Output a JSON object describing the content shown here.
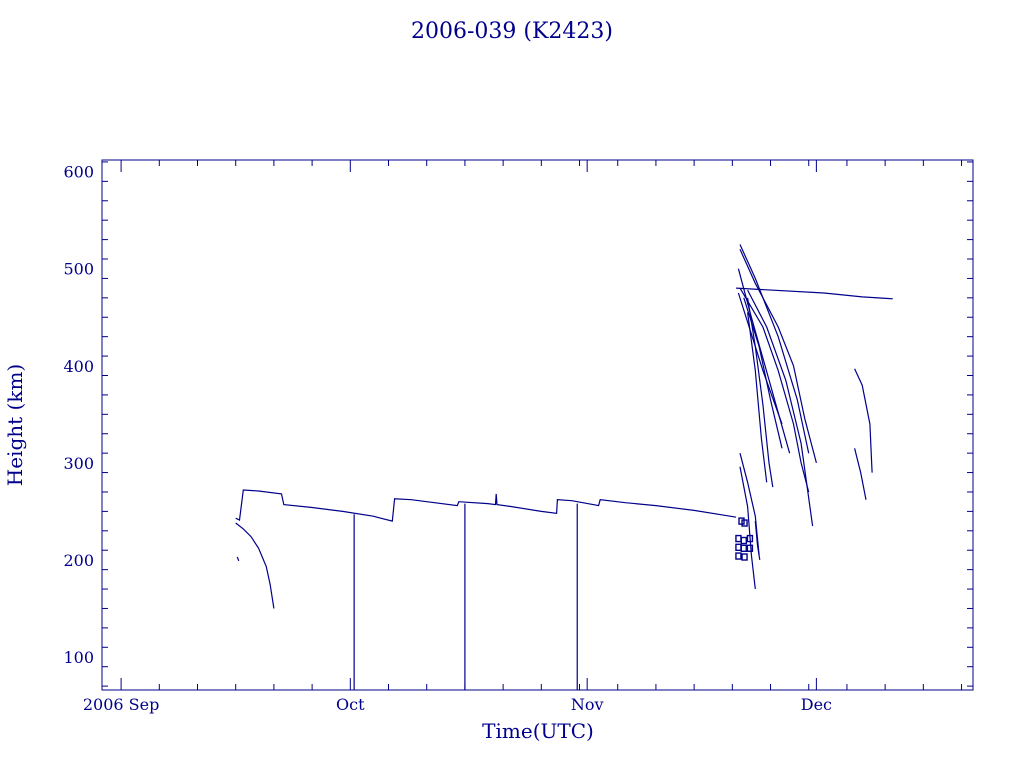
{
  "chart_data": {
    "type": "line",
    "title": "2006-039 (K2423)",
    "xlabel": "Time(UTC)",
    "ylabel": "Height (km)",
    "x_ticks": [
      {
        "value": 0,
        "label": "2006 Sep"
      },
      {
        "value": 30,
        "label": "Oct"
      },
      {
        "value": 61,
        "label": "Nov"
      },
      {
        "value": 91,
        "label": "Dec"
      }
    ],
    "x_range_days_from_2006_09_01": [
      -2.5,
      111.5
    ],
    "y_ticks": [
      100,
      200,
      300,
      400,
      500,
      600
    ],
    "ylim": [
      66,
      612
    ],
    "series": [
      {
        "points": [
          [
            15.0,
            243
          ],
          [
            15.5,
            241
          ],
          [
            16.0,
            272
          ],
          [
            18.0,
            271
          ],
          [
            21.0,
            268
          ],
          [
            21.3,
            257
          ],
          [
            25.0,
            254
          ],
          [
            29.0,
            250
          ],
          [
            33.0,
            245
          ],
          [
            35.5,
            240
          ],
          [
            35.8,
            263
          ],
          [
            38.0,
            262
          ],
          [
            40.0,
            260
          ],
          [
            44.0,
            256
          ],
          [
            44.2,
            260
          ],
          [
            48.0,
            258
          ],
          [
            49.0,
            257
          ],
          [
            49.1,
            268
          ],
          [
            49.2,
            257
          ],
          [
            51.0,
            255
          ],
          [
            55.0,
            250
          ],
          [
            57.0,
            248
          ],
          [
            57.1,
            262
          ],
          [
            59.0,
            261
          ],
          [
            62.5,
            256
          ],
          [
            62.7,
            262
          ],
          [
            66.0,
            259
          ],
          [
            70.0,
            256
          ],
          [
            75.0,
            251
          ],
          [
            79.0,
            246
          ],
          [
            80.5,
            244
          ]
        ]
      },
      {
        "points": [
          [
            15.0,
            238
          ],
          [
            16.0,
            232
          ],
          [
            17.0,
            224
          ],
          [
            18.0,
            212
          ],
          [
            19.0,
            193
          ],
          [
            19.5,
            175
          ],
          [
            20.0,
            150
          ]
        ]
      },
      {
        "points": [
          [
            15.2,
            203
          ],
          [
            15.4,
            199
          ]
        ]
      },
      {
        "points": [
          [
            80.5,
            480
          ],
          [
            92.0,
            475
          ],
          [
            97.0,
            471
          ],
          [
            101.0,
            469
          ]
        ]
      },
      {
        "points": [
          [
            80.8,
            475
          ],
          [
            82.0,
            445
          ],
          [
            84.0,
            395
          ],
          [
            86.5,
            340
          ]
        ]
      },
      {
        "points": [
          [
            80.8,
            500
          ],
          [
            82.5,
            450
          ],
          [
            85.0,
            380
          ],
          [
            87.5,
            310
          ]
        ]
      },
      {
        "points": [
          [
            81.0,
            525
          ],
          [
            83.0,
            490
          ],
          [
            86.0,
            430
          ],
          [
            88.5,
            365
          ],
          [
            90.0,
            310
          ]
        ]
      },
      {
        "points": [
          [
            81.0,
            520
          ],
          [
            83.0,
            485
          ],
          [
            86.0,
            440
          ],
          [
            88.0,
            400
          ],
          [
            89.5,
            345
          ],
          [
            91.0,
            300
          ]
        ]
      },
      {
        "points": [
          [
            81.0,
            480
          ],
          [
            84.0,
            440
          ],
          [
            86.0,
            395
          ],
          [
            88.0,
            340
          ],
          [
            89.0,
            300
          ],
          [
            90.0,
            270
          ]
        ]
      },
      {
        "points": [
          [
            81.5,
            470
          ],
          [
            83.5,
            420
          ],
          [
            85.0,
            365
          ],
          [
            86.5,
            315
          ]
        ]
      },
      {
        "points": [
          [
            82.0,
            478
          ],
          [
            84.5,
            440
          ],
          [
            87.0,
            385
          ],
          [
            89.0,
            320
          ],
          [
            90.5,
            235
          ]
        ]
      },
      {
        "points": [
          [
            82.0,
            470
          ],
          [
            83.0,
            420
          ],
          [
            84.0,
            360
          ],
          [
            84.8,
            300
          ],
          [
            85.3,
            275
          ]
        ]
      },
      {
        "points": [
          [
            82.0,
            455
          ],
          [
            83.0,
            395
          ],
          [
            83.8,
            325
          ],
          [
            84.5,
            280
          ]
        ]
      },
      {
        "points": [
          [
            81.0,
            310
          ],
          [
            82.0,
            280
          ],
          [
            83.0,
            245
          ],
          [
            83.5,
            205
          ]
        ]
      },
      {
        "points": [
          [
            81.0,
            296
          ],
          [
            82.0,
            255
          ],
          [
            82.5,
            205
          ],
          [
            83.0,
            170
          ]
        ]
      },
      {
        "points": [
          [
            83.0,
            240
          ],
          [
            83.3,
            215
          ],
          [
            83.6,
            200
          ]
        ]
      },
      {
        "points": [
          [
            96.0,
            397
          ],
          [
            97.0,
            380
          ],
          [
            98.0,
            340
          ],
          [
            98.3,
            290
          ]
        ]
      },
      {
        "points": [
          [
            96.0,
            315
          ],
          [
            96.8,
            290
          ],
          [
            97.5,
            262
          ]
        ]
      }
    ],
    "decay_markers": [
      {
        "x": 81.2,
        "y": 240
      },
      {
        "x": 81.6,
        "y": 238
      },
      {
        "x": 80.8,
        "y": 222
      },
      {
        "x": 81.5,
        "y": 220
      },
      {
        "x": 82.3,
        "y": 222
      },
      {
        "x": 80.8,
        "y": 213
      },
      {
        "x": 81.5,
        "y": 212
      },
      {
        "x": 82.3,
        "y": 212
      },
      {
        "x": 80.8,
        "y": 204
      },
      {
        "x": 81.6,
        "y": 203
      }
    ],
    "spikes": [
      {
        "x": 30.5,
        "y_top": 247
      },
      {
        "x": 45.0,
        "y_top": 258
      },
      {
        "x": 59.7,
        "y_top": 258
      }
    ],
    "grid": false,
    "legend": "none"
  }
}
